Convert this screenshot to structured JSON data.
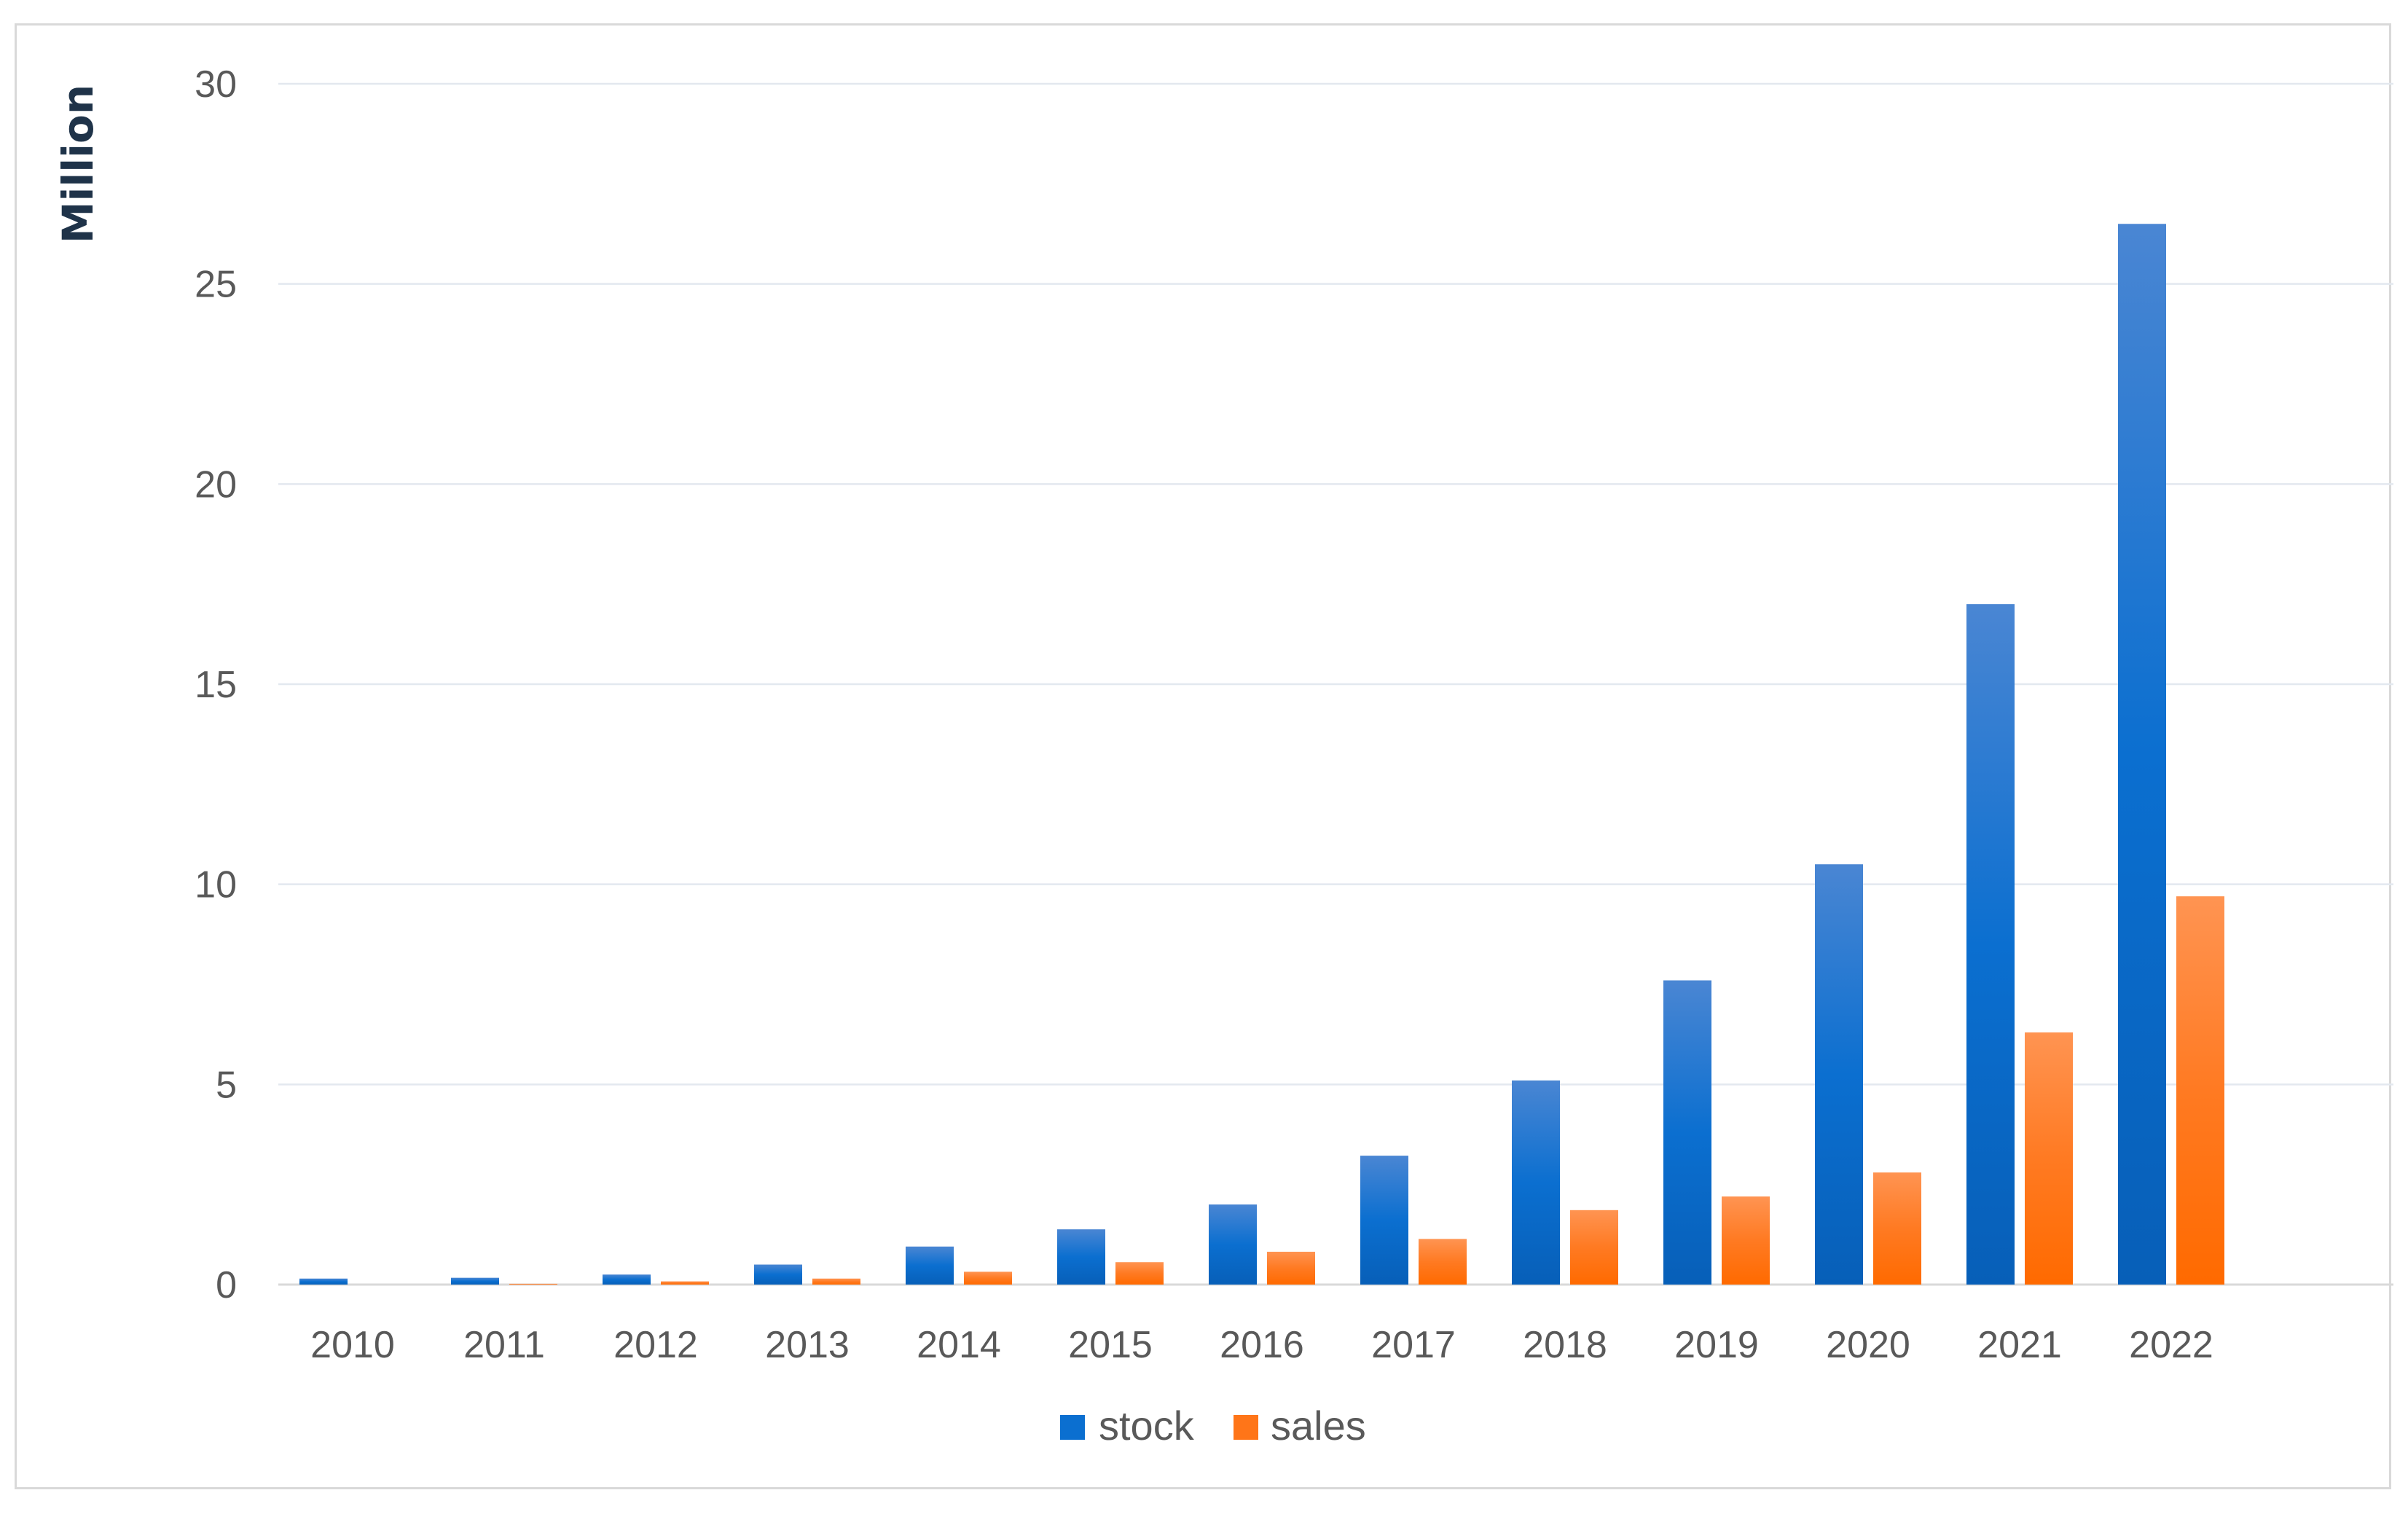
{
  "chart_data": {
    "type": "bar",
    "title": "",
    "xlabel": "",
    "ylabel": "Million",
    "ylim": [
      0,
      30
    ],
    "yticks": [
      0,
      5,
      10,
      15,
      20,
      25,
      30
    ],
    "grid": true,
    "legend_position": "bottom",
    "categories": [
      "2010",
      "2011",
      "2012",
      "2013",
      "2014",
      "2015",
      "2016",
      "2017",
      "2018",
      "2019",
      "2020",
      "2021",
      "2022"
    ],
    "series": [
      {
        "name": "stock",
        "color": "#0b6fd0",
        "values": [
          0.15,
          0.17,
          0.25,
          0.5,
          0.95,
          1.38,
          2.0,
          3.22,
          5.1,
          7.6,
          10.5,
          17.0,
          26.5
        ]
      },
      {
        "name": "sales",
        "color": "#ff7518",
        "values": [
          0.0,
          0.02,
          0.08,
          0.15,
          0.32,
          0.56,
          0.82,
          1.14,
          1.86,
          2.2,
          2.8,
          6.3,
          9.7
        ]
      }
    ]
  }
}
